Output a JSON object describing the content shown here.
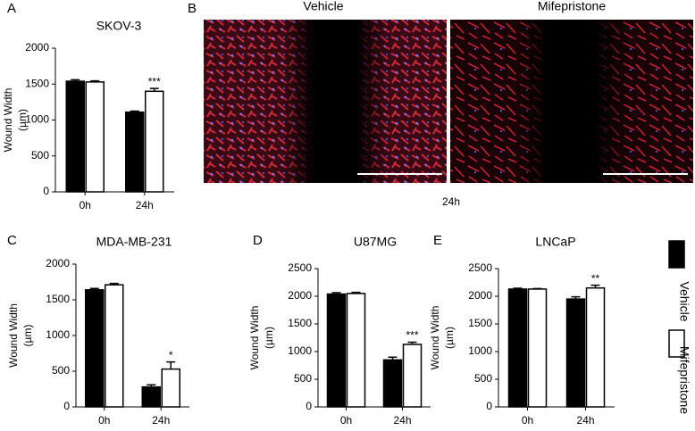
{
  "chart_data": [
    {
      "type": "bar",
      "panel": "A",
      "title": "SKOV-3",
      "ylabel": [
        "Wound Width",
        "(µm)"
      ],
      "categories": [
        "0h",
        "24h"
      ],
      "series": [
        {
          "name": "Vehicle",
          "color": "#000000",
          "values": [
            1540,
            1110
          ],
          "errors": [
            20,
            15
          ]
        },
        {
          "name": "Mifepristone",
          "color": "#ffffff",
          "values": [
            1530,
            1400
          ],
          "errors": [
            15,
            40
          ],
          "significance": [
            null,
            "***"
          ]
        }
      ],
      "ylim": [
        0,
        2000
      ],
      "yticks": [
        0,
        500,
        1000,
        1500,
        2000
      ]
    },
    {
      "type": "bar",
      "panel": "C",
      "title": "MDA-MB-231",
      "ylabel": [
        "Wound Width",
        "(µm)"
      ],
      "categories": [
        "0h",
        "24h"
      ],
      "series": [
        {
          "name": "Vehicle",
          "color": "#000000",
          "values": [
            1640,
            280
          ],
          "errors": [
            20,
            30
          ]
        },
        {
          "name": "Mifepristone",
          "color": "#ffffff",
          "values": [
            1710,
            530
          ],
          "errors": [
            20,
            100
          ],
          "significance": [
            null,
            "*"
          ]
        }
      ],
      "ylim": [
        0,
        2000
      ],
      "yticks": [
        0,
        500,
        1000,
        1500,
        2000
      ]
    },
    {
      "type": "bar",
      "panel": "D",
      "title": "U87MG",
      "ylabel": [
        "Wound Width",
        "(µm)"
      ],
      "categories": [
        "0h",
        "24h"
      ],
      "series": [
        {
          "name": "Vehicle",
          "color": "#000000",
          "values": [
            2040,
            850
          ],
          "errors": [
            25,
            50
          ]
        },
        {
          "name": "Mifepristone",
          "color": "#ffffff",
          "values": [
            2050,
            1130
          ],
          "errors": [
            20,
            40
          ],
          "significance": [
            null,
            "***"
          ]
        }
      ],
      "ylim": [
        0,
        2500
      ],
      "yticks": [
        0,
        500,
        1000,
        1500,
        2000,
        2500
      ]
    },
    {
      "type": "bar",
      "panel": "E",
      "title": "LNCaP",
      "ylabel": [
        "Wound Width",
        "(µm)"
      ],
      "categories": [
        "0h",
        "24h"
      ],
      "series": [
        {
          "name": "Vehicle",
          "color": "#000000",
          "values": [
            2130,
            1950
          ],
          "errors": [
            15,
            40
          ]
        },
        {
          "name": "Mifepristone",
          "color": "#ffffff",
          "values": [
            2130,
            2150
          ],
          "errors": [
            10,
            50
          ],
          "significance": [
            null,
            "**"
          ]
        }
      ],
      "ylim": [
        0,
        2500
      ],
      "yticks": [
        0,
        500,
        1000,
        1500,
        2000,
        2500
      ]
    }
  ],
  "image_panel": {
    "panel": "B",
    "labels": [
      "Vehicle",
      "Mifepristone"
    ],
    "caption": "24h"
  }
}
